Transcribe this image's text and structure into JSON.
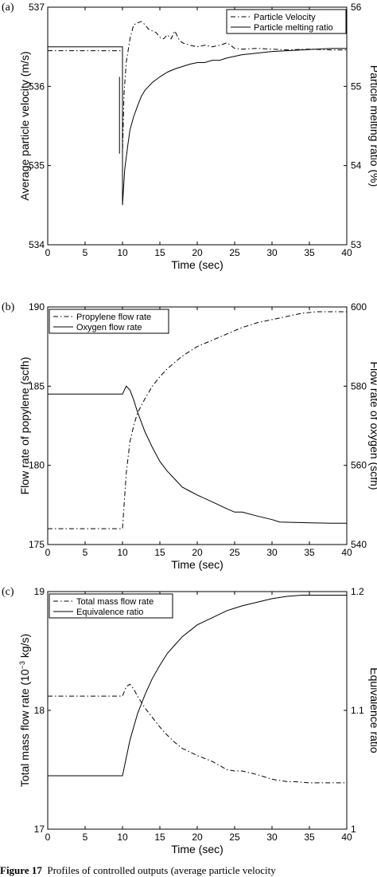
{
  "caption": {
    "label": "Figure 17",
    "text": "Profiles of controlled outputs (average particle velocity"
  },
  "chart_data": [
    {
      "panel": "(a)",
      "type": "line",
      "xlabel": "Time (sec)",
      "ylabel_left": "Average particle velocity (m/s)",
      "ylabel_right": "Particle melting ratio (%)",
      "xlim": [
        0,
        40
      ],
      "xticks": [
        0,
        5,
        10,
        15,
        20,
        25,
        30,
        35,
        40
      ],
      "ylim_left": [
        534,
        537
      ],
      "yticks_left": [
        534,
        535,
        536,
        537
      ],
      "ylim_right": [
        53,
        56
      ],
      "yticks_right": [
        53,
        54,
        55,
        56
      ],
      "legend": "top-right",
      "series": [
        {
          "name": "Particle Velocity",
          "axis": "left",
          "style": "dashdot",
          "x": [
            0,
            10,
            10,
            10.2,
            10.5,
            11,
            11.5,
            12,
            12.5,
            13,
            13.5,
            14,
            14.5,
            15,
            15.5,
            16,
            16.5,
            17,
            17.5,
            18,
            19,
            20,
            21,
            22,
            23,
            24,
            25,
            26,
            28,
            30,
            32,
            35,
            38,
            40
          ],
          "y": [
            536.45,
            536.45,
            535.15,
            535.9,
            536.3,
            536.6,
            536.78,
            536.8,
            536.82,
            536.78,
            536.72,
            536.7,
            536.68,
            536.62,
            536.6,
            536.65,
            536.6,
            536.7,
            536.6,
            536.55,
            536.52,
            536.5,
            536.52,
            536.5,
            536.52,
            536.55,
            536.48,
            536.47,
            536.48,
            536.47,
            536.46,
            536.47,
            536.46,
            536.46
          ]
        },
        {
          "name": "Particle melting ratio",
          "axis": "right",
          "style": "solid",
          "x": [
            0,
            10,
            10,
            10.3,
            10.7,
            11,
            11.5,
            12,
            12.5,
            13,
            13.5,
            14,
            15,
            16,
            17,
            18,
            19,
            20,
            21,
            22,
            23,
            24,
            25,
            26,
            27,
            28,
            30,
            32,
            34,
            36,
            38,
            40
          ],
          "y": [
            55.5,
            55.5,
            53.5,
            53.95,
            54.25,
            54.45,
            54.62,
            54.75,
            54.87,
            54.95,
            55.0,
            55.05,
            55.12,
            55.18,
            55.22,
            55.25,
            55.28,
            55.3,
            55.3,
            55.33,
            55.33,
            55.36,
            55.38,
            55.4,
            55.41,
            55.42,
            55.44,
            55.45,
            55.46,
            55.47,
            55.48,
            55.48
          ]
        }
      ],
      "annotations": [
        {
          "type": "vertical-segment",
          "axis": "left",
          "x": 9.6,
          "y1": 535.15,
          "y2": 536.12
        }
      ]
    },
    {
      "panel": "(b)",
      "type": "line",
      "xlabel": "Time (sec)",
      "ylabel_left": "Flow rate of popylene (scfh)",
      "ylabel_right": "Flow rate of oxygen (scfh)",
      "xlim": [
        0,
        40
      ],
      "xticks": [
        0,
        5,
        10,
        15,
        20,
        25,
        30,
        35,
        40
      ],
      "ylim_left": [
        175,
        190
      ],
      "yticks_left": [
        175,
        180,
        185,
        190
      ],
      "ylim_right": [
        540,
        600
      ],
      "yticks_right": [
        540,
        560,
        580,
        600
      ],
      "legend": "top-left",
      "series": [
        {
          "name": "Propylene flow rate",
          "axis": "left",
          "style": "dashdot",
          "x": [
            0,
            10,
            10.5,
            11,
            11.5,
            12,
            13,
            14,
            15,
            16,
            17,
            18,
            19,
            20,
            22,
            24,
            26,
            28,
            30,
            32,
            34,
            36,
            38,
            40
          ],
          "y": [
            176,
            176,
            179.5,
            181.5,
            182.5,
            183.3,
            184.2,
            185.0,
            185.6,
            186.1,
            186.5,
            186.9,
            187.2,
            187.5,
            187.9,
            188.3,
            188.7,
            189.0,
            189.2,
            189.4,
            189.6,
            189.7,
            189.7,
            189.7
          ]
        },
        {
          "name": "Oxygen flow rate",
          "axis": "right",
          "style": "solid",
          "x": [
            0,
            10,
            10.5,
            11,
            11.5,
            12,
            13,
            14,
            15,
            16,
            17,
            18,
            19,
            20,
            22,
            24,
            25,
            26,
            28,
            30,
            31,
            33,
            35,
            38,
            40
          ],
          "y": [
            578,
            578,
            580,
            579,
            576.5,
            573.5,
            568.5,
            564.5,
            561,
            558.5,
            556.5,
            554.5,
            553.5,
            552.5,
            550.8,
            549,
            548.2,
            548.2,
            547.2,
            546.3,
            545.7,
            545.6,
            545.5,
            545.4,
            545.4
          ]
        }
      ]
    },
    {
      "panel": "(c)",
      "type": "line",
      "xlabel": "Time (sec)",
      "ylabel_left": "Total mass flow rate (10",
      "ylabel_left_sup": "−3",
      "ylabel_left_tail": " kg/s)",
      "ylabel_right": "Equivalence ratio",
      "xlim": [
        0,
        40
      ],
      "xticks": [
        0,
        5,
        10,
        15,
        20,
        25,
        30,
        35,
        40
      ],
      "ylim_left": [
        17,
        19
      ],
      "yticks_left": [
        17,
        18,
        19
      ],
      "ylim_right": [
        1,
        1.2
      ],
      "yticks_right": [
        1,
        1.1,
        1.2
      ],
      "legend": "top-left",
      "series": [
        {
          "name": "Total mass flow rate",
          "axis": "left",
          "style": "dashdot",
          "x": [
            0,
            10,
            10.5,
            11,
            11.5,
            12,
            13,
            14,
            15,
            16,
            17,
            18,
            20,
            22,
            24,
            25,
            26,
            28,
            30,
            32,
            33,
            35,
            38,
            40
          ],
          "y": [
            18.12,
            18.12,
            18.2,
            18.22,
            18.18,
            18.12,
            18.02,
            17.94,
            17.86,
            17.79,
            17.73,
            17.68,
            17.62,
            17.57,
            17.5,
            17.49,
            17.49,
            17.46,
            17.42,
            17.4,
            17.4,
            17.39,
            17.39,
            17.39
          ]
        },
        {
          "name": "Equivalence ratio",
          "axis": "right",
          "style": "solid",
          "x": [
            0,
            10,
            10.5,
            11,
            12,
            13,
            14,
            15,
            16,
            17,
            18,
            19,
            20,
            22,
            24,
            25,
            26,
            28,
            30,
            32,
            34,
            35,
            38,
            40
          ],
          "y": [
            1.045,
            1.045,
            1.06,
            1.075,
            1.097,
            1.113,
            1.127,
            1.138,
            1.148,
            1.155,
            1.162,
            1.167,
            1.172,
            1.178,
            1.184,
            1.186,
            1.188,
            1.191,
            1.194,
            1.196,
            1.197,
            1.197,
            1.197,
            1.197
          ]
        }
      ]
    }
  ]
}
